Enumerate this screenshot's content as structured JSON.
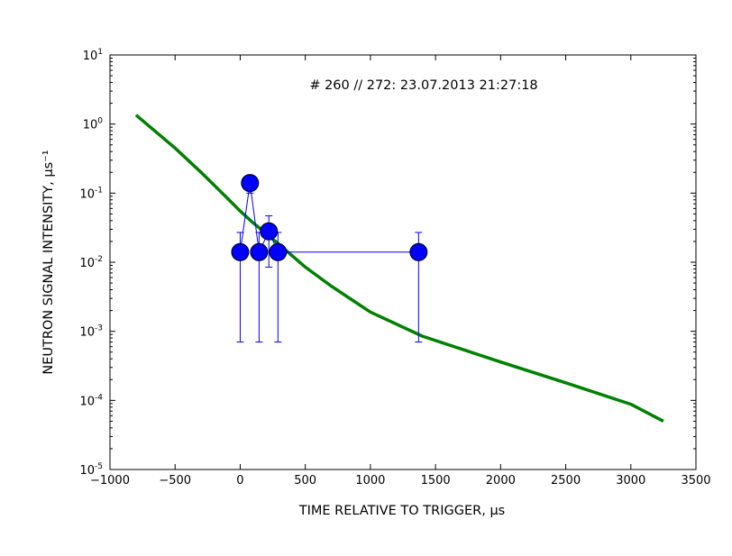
{
  "chart_data": {
    "type": "scatter",
    "title": "# 260 // 272: 23.07.2013 21:27:18",
    "xlabel": "TIME RELATIVE TO TRIGGER, μs",
    "ylabel": "NEUTRON SIGNAL INTENSITY, μs⁻¹",
    "xlim": [
      -1000,
      3500
    ],
    "ylim": [
      1e-05,
      10
    ],
    "yscale": "log",
    "grid": false,
    "x_ticks": [
      -1000,
      -500,
      0,
      500,
      1000,
      1500,
      2000,
      2500,
      3000,
      3500
    ],
    "x_tick_labels": [
      "−1000",
      "−500",
      "0",
      "500",
      "1000",
      "1500",
      "2000",
      "2500",
      "3000",
      "3500"
    ],
    "y_tick_exponents": [
      -5,
      -4,
      -3,
      -2,
      -1,
      0,
      1
    ],
    "y_tick_base": "10",
    "series": [
      {
        "kind": "points",
        "color": "#0000ff",
        "x": [
          0,
          75,
          145,
          220,
          290,
          1370
        ],
        "y": [
          0.014,
          0.14,
          0.014,
          0.028,
          0.014,
          0.014
        ],
        "yerr_low": [
          0.0007,
          0.1,
          0.0007,
          0.0085,
          0.0007,
          0.0007
        ],
        "yerr_high": [
          0.027,
          0.165,
          0.027,
          0.047,
          0.027,
          0.027
        ]
      },
      {
        "kind": "curve",
        "color": "#008000",
        "x": [
          -800,
          -500,
          -300,
          -100,
          0,
          100,
          200,
          300,
          500,
          700,
          1000,
          1400,
          2000,
          2500,
          3000,
          3250
        ],
        "y": [
          1.35,
          0.45,
          0.2,
          0.085,
          0.055,
          0.037,
          0.026,
          0.018,
          0.0085,
          0.0045,
          0.0019,
          0.00085,
          0.00036,
          0.00018,
          8.8e-05,
          5e-05
        ]
      }
    ]
  }
}
